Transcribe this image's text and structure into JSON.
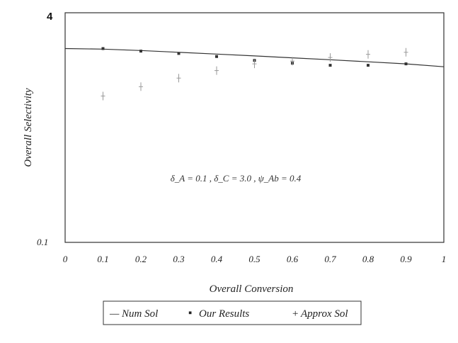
{
  "chart_data": {
    "type": "line",
    "title": "",
    "xlabel": "Overall Conversion",
    "ylabel": "Overall Selectivity",
    "xlim": [
      0,
      1
    ],
    "ylim": [
      0.1,
      4
    ],
    "y_scale": "log",
    "grid": false,
    "x_ticks": [
      "0",
      "0.1",
      "0.2",
      "0.3",
      "0.4",
      "0.5",
      "0.6",
      "0.7",
      "0.8",
      "0.9",
      "1"
    ],
    "y_ticks": [
      "0.1",
      "4"
    ],
    "annotation": "δ_A = 0.1 , δ_C = 3.0 , ψ_Ab = 0.4",
    "legend": {
      "position": "bottom",
      "entries": [
        {
          "symbol": "—",
          "label": "Num Sol"
        },
        {
          "symbol": "▪",
          "label": "Our Results"
        },
        {
          "symbol": "+",
          "label": "Approx Sol"
        }
      ]
    },
    "series": [
      {
        "name": "Num Sol",
        "style": "line",
        "x": [
          0,
          0.1,
          0.2,
          0.3,
          0.4,
          0.5,
          0.6,
          0.7,
          0.8,
          0.9,
          1.0
        ],
        "y": [
          2.25,
          2.23,
          2.18,
          2.12,
          2.06,
          2.0,
          1.94,
          1.88,
          1.82,
          1.76,
          1.68
        ]
      },
      {
        "name": "Our Results",
        "style": "markers",
        "x": [
          0.1,
          0.2,
          0.3,
          0.4,
          0.5,
          0.6,
          0.7,
          0.8,
          0.9
        ],
        "y": [
          2.25,
          2.16,
          2.08,
          1.98,
          1.86,
          1.78,
          1.72,
          1.72,
          1.76
        ]
      },
      {
        "name": "Approx Sol",
        "style": "crosses",
        "x": [
          0.1,
          0.2,
          0.3,
          0.4,
          0.5,
          0.6,
          0.7,
          0.8,
          0.9
        ],
        "y": [
          1.05,
          1.22,
          1.4,
          1.58,
          1.76,
          1.84,
          1.95,
          2.05,
          2.12
        ]
      }
    ]
  }
}
